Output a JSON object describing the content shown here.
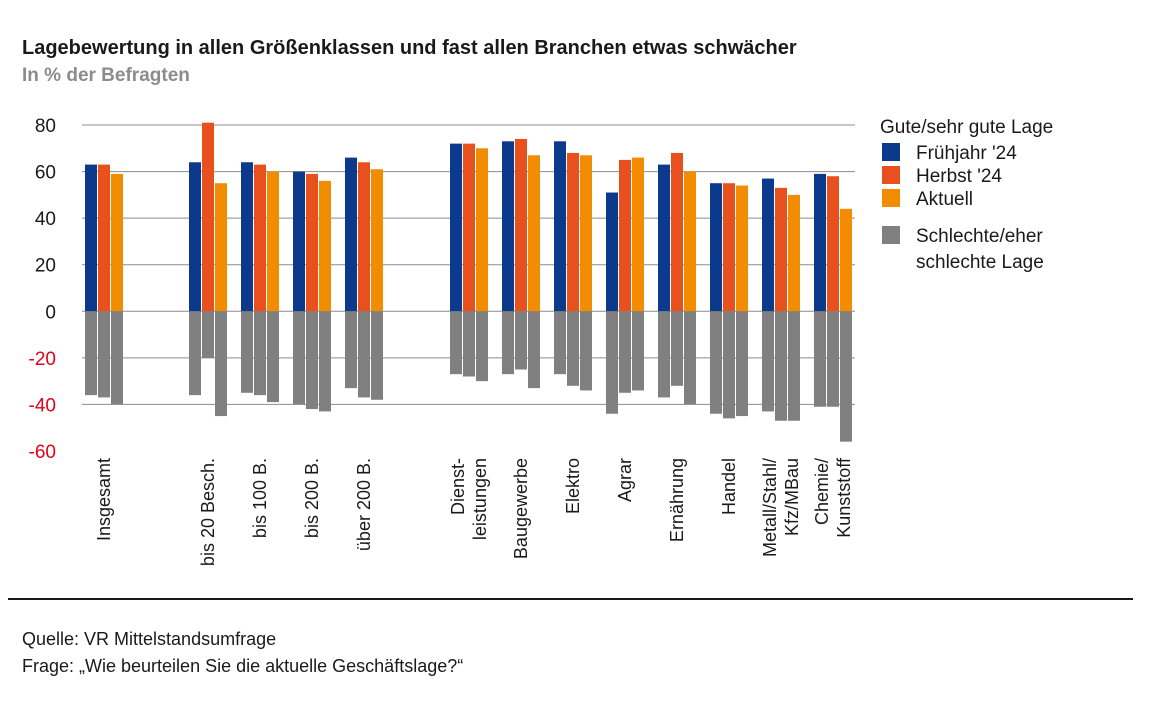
{
  "title": "Lagebewertung in allen Größenklassen und fast allen Branchen etwas schwächer",
  "subtitle": "In % der Befragten",
  "colors": {
    "fruehjahr": "#0b3a8c",
    "herbst": "#e8501e",
    "aktuell": "#f28c00",
    "schlecht": "#808080",
    "negative_tick": "#e3001b",
    "grid": "#8c8c8c"
  },
  "legend": {
    "good_header": "Gute/sehr gute Lage",
    "items": [
      "Frühjahr '24",
      "Herbst '24",
      "Aktuell"
    ],
    "bad_label": [
      "Schlechte/eher",
      "schlechte Lage"
    ]
  },
  "footer": {
    "source": "Quelle: VR Mittelstandsumfrage",
    "question": "Frage: „Wie beurteilen Sie die aktuelle Geschäftslage?“"
  },
  "chart_data": {
    "type": "bar",
    "ylim": [
      -60,
      80
    ],
    "yticks": [
      80,
      60,
      40,
      20,
      0,
      -20,
      -40,
      -60
    ],
    "grid": true,
    "legend_position": "right",
    "categories": [
      {
        "label": [
          "Insgesamt"
        ],
        "good": [
          63,
          63,
          59
        ],
        "bad": [
          -36,
          -37,
          -40
        ]
      },
      {
        "label": [
          "bis 20 Besch."
        ],
        "good": [
          64,
          81,
          55
        ],
        "bad": [
          -36,
          -20,
          -45
        ]
      },
      {
        "label": [
          "bis 100 B."
        ],
        "good": [
          64,
          63,
          60
        ],
        "bad": [
          -35,
          -36,
          -39
        ]
      },
      {
        "label": [
          "bis 200 B."
        ],
        "good": [
          60,
          59,
          56
        ],
        "bad": [
          -40,
          -42,
          -43
        ]
      },
      {
        "label": [
          "über 200 B."
        ],
        "good": [
          66,
          64,
          61
        ],
        "bad": [
          -33,
          -37,
          -38
        ]
      },
      {
        "label": [
          "Dienst-",
          "leistungen"
        ],
        "good": [
          72,
          72,
          70
        ],
        "bad": [
          -27,
          -28,
          -30
        ]
      },
      {
        "label": [
          "Baugewerbe"
        ],
        "good": [
          73,
          74,
          67
        ],
        "bad": [
          -27,
          -25,
          -33
        ]
      },
      {
        "label": [
          "Elektro"
        ],
        "good": [
          73,
          68,
          67
        ],
        "bad": [
          -27,
          -32,
          -34
        ]
      },
      {
        "label": [
          "Agrar"
        ],
        "good": [
          51,
          65,
          66
        ],
        "bad": [
          -44,
          -35,
          -34
        ]
      },
      {
        "label": [
          "Ernährung"
        ],
        "good": [
          63,
          68,
          60
        ],
        "bad": [
          -37,
          -32,
          -40
        ]
      },
      {
        "label": [
          "Handel"
        ],
        "good": [
          55,
          55,
          54
        ],
        "bad": [
          -44,
          -46,
          -45
        ]
      },
      {
        "label": [
          "Metall/Stahl/",
          "Kfz/MBau"
        ],
        "good": [
          57,
          53,
          50
        ],
        "bad": [
          -43,
          -47,
          -47
        ]
      },
      {
        "label": [
          "Chemie/",
          "Kunststoff"
        ],
        "good": [
          59,
          58,
          44
        ],
        "bad": [
          -41,
          -41,
          -56
        ]
      }
    ]
  }
}
